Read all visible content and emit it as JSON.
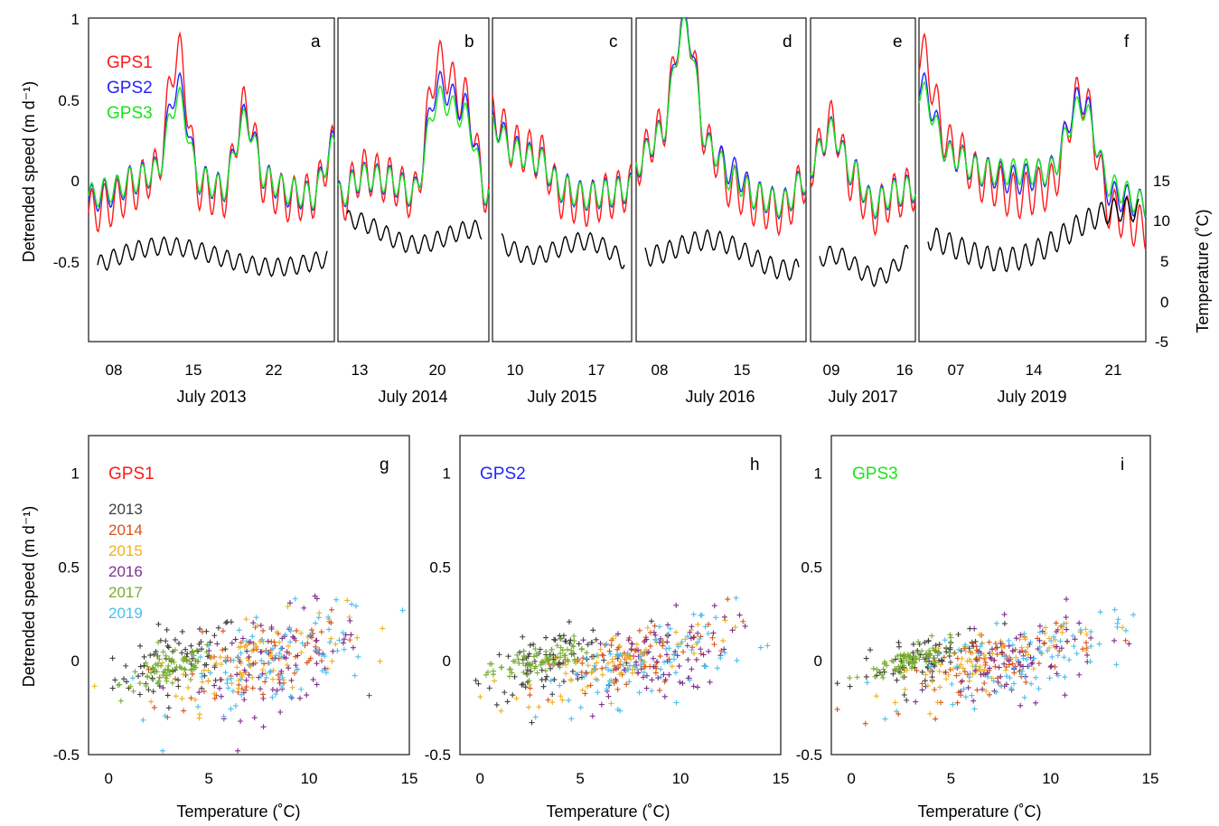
{
  "colors": {
    "GPS1": "#ff1a1a",
    "GPS2": "#2424ff",
    "GPS3": "#19e619",
    "temp": "#000000",
    "years": {
      "2013": "#404040",
      "2014": "#d95319",
      "2015": "#edb120",
      "2016": "#7e2f8e",
      "2017": "#77ac30",
      "2019": "#4dbeee"
    }
  },
  "top": {
    "ylabel_left": "Detrended speed (m d⁻¹)",
    "ylabel_right": "Temperature (˚C)",
    "yticks_left": [
      "-0.5",
      "0",
      "0.5",
      "1"
    ],
    "yticks_right": [
      "-5",
      "0",
      "5",
      "10",
      "15"
    ],
    "legend": [
      "GPS1",
      "GPS2",
      "GPS3"
    ]
  },
  "bottom": {
    "ylabel": "Detrended speed (m d⁻¹)",
    "xlabel": "Temperature (˚C)",
    "xticks": [
      "0",
      "5",
      "10",
      "15"
    ],
    "yticks": [
      "-0.5",
      "0",
      "0.5",
      "1"
    ],
    "year_legend": [
      "2013",
      "2014",
      "2015",
      "2016",
      "2017",
      "2019"
    ]
  },
  "chart_data": [
    {
      "type": "line",
      "panel": "a",
      "xlabel": "July 2013",
      "xticks": [
        "08",
        "15",
        "22"
      ],
      "ylim": [
        -1,
        1
      ],
      "y2lim": [
        -5,
        20
      ],
      "temp_range": [
        0,
        9
      ],
      "series": [
        {
          "name": "GPS1",
          "values": [
            -0.2,
            -0.15,
            -0.05,
            0.05,
            0.78,
            -0.05,
            -0.1,
            0.44,
            -0.05,
            -0.12,
            -0.1,
            0.2
          ]
        },
        {
          "name": "GPS2",
          "values": [
            -0.12,
            -0.08,
            0.0,
            0.05,
            0.58,
            0.0,
            -0.05,
            0.38,
            0.0,
            -0.08,
            -0.1,
            0.22
          ]
        },
        {
          "name": "GPS3",
          "values": [
            -0.1,
            -0.06,
            0.0,
            0.05,
            0.5,
            0.0,
            -0.05,
            0.36,
            0.0,
            -0.07,
            -0.1,
            0.2
          ]
        }
      ]
    },
    {
      "type": "line",
      "panel": "b",
      "xlabel": "July 2014",
      "xticks": [
        "13",
        "20"
      ],
      "ylim": [
        -1,
        1
      ],
      "y2lim": [
        -5,
        20
      ],
      "temp_range": [
        3,
        12
      ],
      "series": [
        {
          "name": "GPS1",
          "values": [
            -0.15,
            0.05,
            0.0,
            -0.1,
            0.72,
            0.5,
            -0.1
          ]
        },
        {
          "name": "GPS2",
          "values": [
            -0.1,
            0.02,
            0.0,
            -0.08,
            0.58,
            0.45,
            -0.1
          ]
        },
        {
          "name": "GPS3",
          "values": [
            -0.1,
            0.02,
            0.0,
            -0.08,
            0.5,
            0.4,
            -0.1
          ]
        }
      ]
    },
    {
      "type": "line",
      "panel": "c",
      "xlabel": "July 2015",
      "xticks": [
        "10",
        "17"
      ],
      "ylim": [
        -1,
        1
      ],
      "y2lim": [
        -5,
        20
      ],
      "temp_range": [
        2,
        11
      ],
      "series": [
        {
          "name": "GPS1",
          "values": [
            0.4,
            0.2,
            0.15,
            -0.1,
            -0.15,
            -0.1,
            -0.05
          ]
        },
        {
          "name": "GPS2",
          "values": [
            0.35,
            0.18,
            0.12,
            -0.05,
            -0.1,
            -0.08,
            -0.05
          ]
        },
        {
          "name": "GPS3",
          "values": [
            0.33,
            0.17,
            0.12,
            -0.05,
            -0.1,
            -0.08,
            -0.05
          ]
        }
      ]
    },
    {
      "type": "line",
      "panel": "d",
      "xlabel": "July 2016",
      "xticks": [
        "08",
        "15"
      ],
      "ylim": [
        -1,
        1
      ],
      "y2lim": [
        -5,
        20
      ],
      "temp_range": [
        2,
        12
      ],
      "series": [
        {
          "name": "GPS1",
          "values": [
            0.1,
            0.3,
            1.0,
            0.2,
            -0.05,
            -0.15,
            -0.2,
            0.0
          ]
        },
        {
          "name": "GPS2",
          "values": [
            0.1,
            0.28,
            0.98,
            0.2,
            0.05,
            -0.1,
            -0.15,
            0.0
          ]
        },
        {
          "name": "GPS3",
          "values": [
            0.1,
            0.28,
            0.95,
            0.2,
            0.0,
            -0.1,
            -0.15,
            0.0
          ]
        }
      ]
    },
    {
      "type": "line",
      "panel": "e",
      "xlabel": "July 2017",
      "xticks": [
        "09",
        "16"
      ],
      "ylim": [
        -1,
        1
      ],
      "y2lim": [
        -5,
        20
      ],
      "temp_range": [
        1,
        10
      ],
      "series": [
        {
          "name": "GPS1",
          "values": [
            0.1,
            0.35,
            0.0,
            -0.2,
            -0.1,
            -0.05
          ]
        },
        {
          "name": "GPS2",
          "values": [
            0.1,
            0.3,
            0.05,
            -0.15,
            -0.08,
            -0.05
          ]
        },
        {
          "name": "GPS3",
          "values": [
            0.1,
            0.3,
            0.05,
            -0.15,
            -0.08,
            -0.05
          ]
        }
      ]
    },
    {
      "type": "line",
      "panel": "f",
      "xlabel": "July 2019",
      "xticks": [
        "07",
        "14",
        "21"
      ],
      "ylim": [
        -1,
        1
      ],
      "y2lim": [
        -5,
        20
      ],
      "temp_range": [
        2,
        14
      ],
      "series": [
        {
          "name": "GPS1",
          "values": [
            0.8,
            0.2,
            0.0,
            -0.1,
            -0.05,
            0.52,
            -0.2,
            -0.3
          ]
        },
        {
          "name": "GPS2",
          "values": [
            0.6,
            0.15,
            0.05,
            0.0,
            0.05,
            0.5,
            -0.1,
            -0.15
          ]
        },
        {
          "name": "GPS3",
          "values": [
            0.55,
            0.15,
            0.05,
            0.05,
            0.05,
            0.45,
            -0.05,
            -0.15
          ]
        }
      ]
    },
    {
      "type": "scatter",
      "panel": "g",
      "label": "GPS1",
      "xlim": [
        -1,
        15
      ],
      "ylim": [
        -0.5,
        1.2
      ],
      "series": [
        {
          "name": "2013",
          "cx": 3.5,
          "cy": 0.0,
          "sx": 2.0,
          "sy": 0.18
        },
        {
          "name": "2014",
          "cx": 7.5,
          "cy": 0.0,
          "sx": 3.0,
          "sy": 0.22
        },
        {
          "name": "2015",
          "cx": 7.0,
          "cy": 0.0,
          "sx": 3.0,
          "sy": 0.2
        },
        {
          "name": "2016",
          "cx": 8.5,
          "cy": 0.0,
          "sx": 2.5,
          "sy": 0.25
        },
        {
          "name": "2017",
          "cx": 3.0,
          "cy": -0.05,
          "sx": 1.5,
          "sy": 0.1
        },
        {
          "name": "2019",
          "cx": 8.5,
          "cy": 0.0,
          "sx": 3.2,
          "sy": 0.25
        }
      ]
    },
    {
      "type": "scatter",
      "panel": "h",
      "label": "GPS2",
      "xlim": [
        -1,
        15
      ],
      "ylim": [
        -0.5,
        1.2
      ],
      "series": [
        {
          "name": "2013",
          "cx": 3.5,
          "cy": 0.0,
          "sx": 2.0,
          "sy": 0.15
        },
        {
          "name": "2014",
          "cx": 7.5,
          "cy": 0.0,
          "sx": 3.0,
          "sy": 0.18
        },
        {
          "name": "2015",
          "cx": 7.0,
          "cy": 0.0,
          "sx": 3.0,
          "sy": 0.15
        },
        {
          "name": "2016",
          "cx": 8.5,
          "cy": 0.0,
          "sx": 2.5,
          "sy": 0.22
        },
        {
          "name": "2017",
          "cx": 3.0,
          "cy": 0.0,
          "sx": 1.5,
          "sy": 0.08
        },
        {
          "name": "2019",
          "cx": 8.5,
          "cy": 0.0,
          "sx": 3.2,
          "sy": 0.2
        }
      ]
    },
    {
      "type": "scatter",
      "panel": "i",
      "label": "GPS3",
      "xlim": [
        -1,
        15
      ],
      "ylim": [
        -0.5,
        1.2
      ],
      "series": [
        {
          "name": "2013",
          "cx": 3.5,
          "cy": 0.0,
          "sx": 2.0,
          "sy": 0.12
        },
        {
          "name": "2014",
          "cx": 7.5,
          "cy": 0.0,
          "sx": 3.0,
          "sy": 0.15
        },
        {
          "name": "2015",
          "cx": 7.0,
          "cy": 0.0,
          "sx": 3.0,
          "sy": 0.13
        },
        {
          "name": "2016",
          "cx": 8.5,
          "cy": 0.0,
          "sx": 2.5,
          "sy": 0.2
        },
        {
          "name": "2017",
          "cx": 3.0,
          "cy": 0.0,
          "sx": 1.5,
          "sy": 0.07
        },
        {
          "name": "2019",
          "cx": 8.5,
          "cy": 0.0,
          "sx": 3.2,
          "sy": 0.18
        }
      ]
    }
  ]
}
